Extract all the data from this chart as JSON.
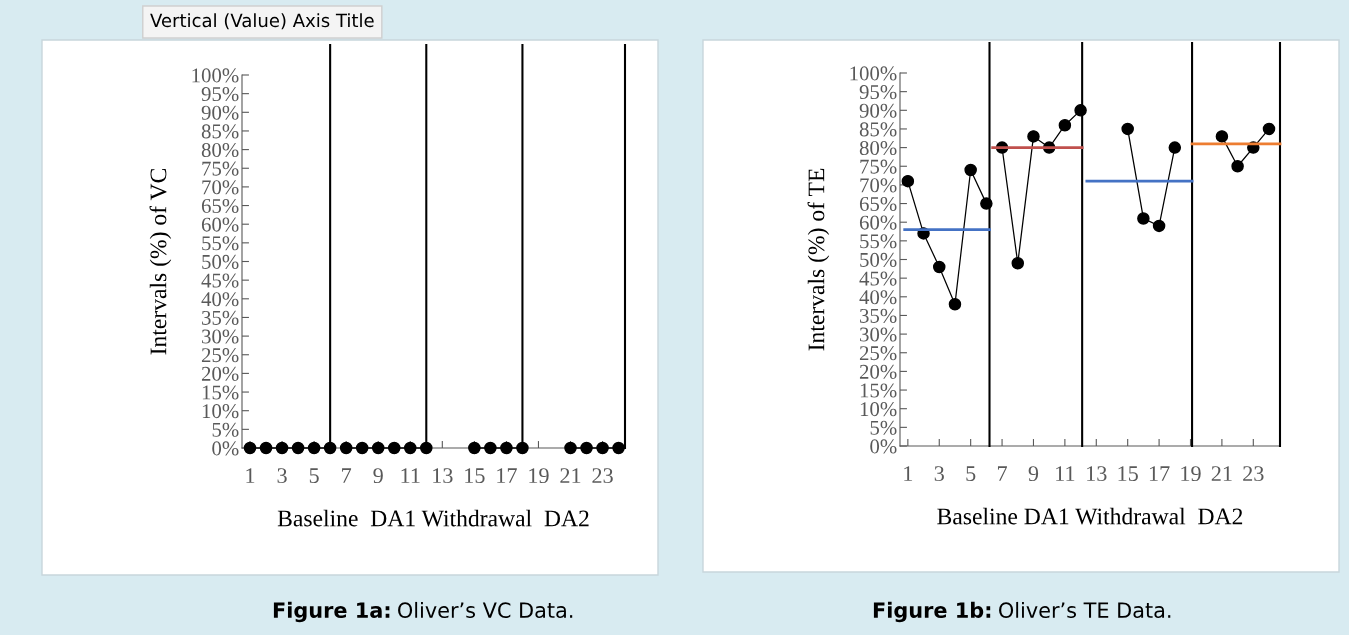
{
  "chart_data": [
    {
      "type": "line",
      "xlabel": "Baseline  DA1 Withdrawal  DA2",
      "ylabel": "Intervals (%) of VC",
      "xlim": [
        0.5,
        24.4
      ],
      "xticks": [
        1,
        3,
        5,
        7,
        9,
        11,
        13,
        15,
        17,
        19,
        21,
        23
      ],
      "ylim": [
        0,
        100
      ],
      "yticks": [
        {
          "value": 0,
          "label": "0%"
        },
        {
          "value": 5,
          "label": "5%"
        },
        {
          "value": 10,
          "label": "10%"
        },
        {
          "value": 15,
          "label": "15%"
        },
        {
          "value": 20,
          "label": "20%"
        },
        {
          "value": 25,
          "label": "25%"
        },
        {
          "value": 30,
          "label": "30%"
        },
        {
          "value": 35,
          "label": "35%"
        },
        {
          "value": 40,
          "label": "40%"
        },
        {
          "value": 45,
          "label": "45%"
        },
        {
          "value": 50,
          "label": "50%"
        },
        {
          "value": 55,
          "label": "55%"
        },
        {
          "value": 60,
          "label": "60%"
        },
        {
          "value": 65,
          "label": "65%"
        },
        {
          "value": 70,
          "label": "70%"
        },
        {
          "value": 75,
          "label": "75%"
        },
        {
          "value": 80,
          "label": "80%"
        },
        {
          "value": 85,
          "label": "85%"
        },
        {
          "value": 90,
          "label": "90%"
        },
        {
          "value": 95,
          "label": "95%"
        },
        {
          "value": 100,
          "label": "100%"
        }
      ],
      "marker": "circle",
      "grid": false,
      "legend": false,
      "series": [
        {
          "color": "#000000",
          "x": [
            1,
            2,
            3,
            4,
            5,
            6
          ],
          "values": [
            0,
            0,
            0,
            0,
            0,
            0
          ]
        },
        {
          "color": "#000000",
          "x": [
            7,
            8,
            9,
            10,
            11,
            12
          ],
          "values": [
            0,
            0,
            0,
            0,
            0,
            0
          ]
        },
        {
          "color": "#000000",
          "x": [
            15,
            16,
            17,
            18
          ],
          "values": [
            0,
            0,
            0,
            0
          ]
        },
        {
          "color": "#000000",
          "x": [
            21,
            22,
            23,
            24
          ],
          "values": [
            0,
            0,
            0,
            0
          ]
        }
      ],
      "ref_lines": [
        {
          "axis": "x",
          "value": 6,
          "color": "#000000"
        },
        {
          "axis": "x",
          "value": 12,
          "color": "#000000"
        },
        {
          "axis": "x",
          "value": 18,
          "color": "#000000"
        },
        {
          "axis": "x",
          "value": 24.4,
          "color": "#000000"
        }
      ],
      "annotations": [
        "Vertical (Value) Axis Title",
        "Figure 1a:",
        "Oliver’s VC Data."
      ]
    },
    {
      "type": "line",
      "xlabel": "Baseline DA1 Withdrawal  DA2",
      "ylabel": "Intervals (%) of TE",
      "xlim": [
        0.5,
        24.7
      ],
      "xticks": [
        1,
        3,
        5,
        7,
        9,
        11,
        13,
        15,
        17,
        19,
        21,
        23
      ],
      "ylim": [
        0,
        100
      ],
      "yticks": [
        {
          "value": 0,
          "label": "0%"
        },
        {
          "value": 5,
          "label": "5%"
        },
        {
          "value": 10,
          "label": "10%"
        },
        {
          "value": 15,
          "label": "15%"
        },
        {
          "value": 20,
          "label": "20%"
        },
        {
          "value": 25,
          "label": "25%"
        },
        {
          "value": 30,
          "label": "30%"
        },
        {
          "value": 35,
          "label": "35%"
        },
        {
          "value": 40,
          "label": "40%"
        },
        {
          "value": 45,
          "label": "45%"
        },
        {
          "value": 50,
          "label": "50%"
        },
        {
          "value": 55,
          "label": "55%"
        },
        {
          "value": 60,
          "label": "60%"
        },
        {
          "value": 65,
          "label": "65%"
        },
        {
          "value": 70,
          "label": "70%"
        },
        {
          "value": 75,
          "label": "75%"
        },
        {
          "value": 80,
          "label": "80%"
        },
        {
          "value": 85,
          "label": "85%"
        },
        {
          "value": 90,
          "label": "90%"
        },
        {
          "value": 95,
          "label": "95%"
        },
        {
          "value": 100,
          "label": "100%"
        }
      ],
      "marker": "circle",
      "grid": false,
      "legend": false,
      "series": [
        {
          "color": "#000000",
          "x": [
            1,
            2,
            3,
            4,
            5,
            6
          ],
          "values": [
            71,
            57,
            48,
            38,
            74,
            65
          ]
        },
        {
          "color": "#000000",
          "x": [
            7,
            8,
            9,
            10,
            11,
            12
          ],
          "values": [
            80,
            49,
            83,
            80,
            86,
            90
          ]
        },
        {
          "color": "#000000",
          "x": [
            15,
            16,
            17,
            18
          ],
          "values": [
            85,
            61,
            59,
            80
          ]
        },
        {
          "color": "#000000",
          "x": [
            21,
            22,
            23,
            24
          ],
          "values": [
            83,
            75,
            80,
            85
          ]
        },
        {
          "type": "line",
          "marker": "none",
          "color": "#4472c4",
          "x": [
            0.8,
            6.2
          ],
          "values": [
            58,
            58
          ]
        },
        {
          "type": "line",
          "marker": "none",
          "color": "#c0504d",
          "x": [
            6.4,
            12.1
          ],
          "values": [
            80,
            80
          ]
        },
        {
          "type": "line",
          "marker": "none",
          "color": "#4472c4",
          "x": [
            12.4,
            19.1
          ],
          "values": [
            71,
            71
          ]
        },
        {
          "type": "line",
          "marker": "none",
          "color": "#ed7d31",
          "x": [
            19.1,
            24.7
          ],
          "values": [
            81,
            81
          ]
        }
      ],
      "ref_lines": [
        {
          "axis": "x",
          "value": 6.2,
          "color": "#000000"
        },
        {
          "axis": "x",
          "value": 12.1,
          "color": "#000000"
        },
        {
          "axis": "x",
          "value": 19.1,
          "color": "#000000"
        },
        {
          "axis": "x",
          "value": 24.7,
          "color": "#000000"
        }
      ],
      "annotations": [
        "Figure 1b:",
        "Oliver’s TE Data."
      ]
    }
  ]
}
